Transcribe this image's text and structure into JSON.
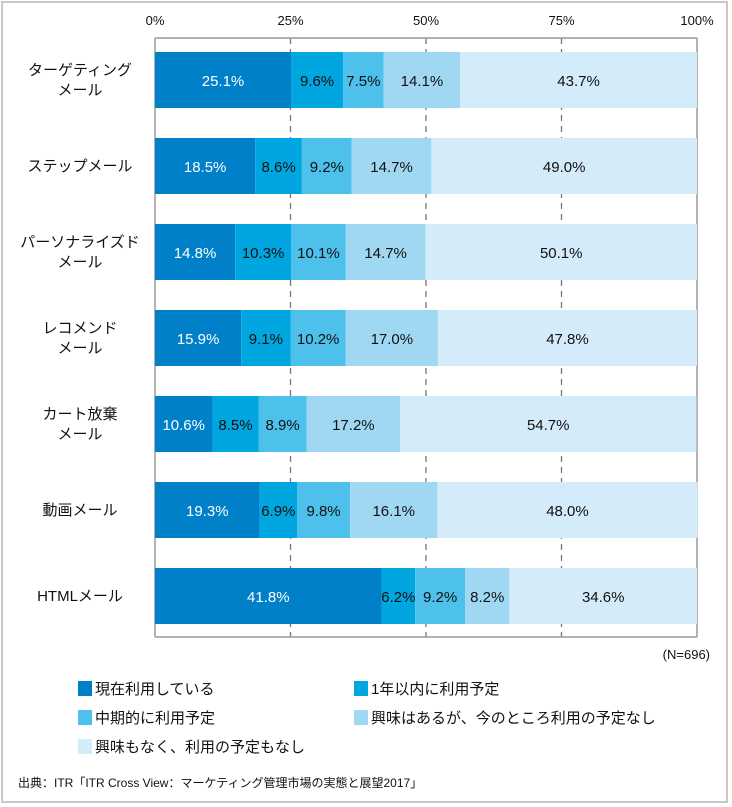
{
  "chart_data": {
    "type": "bar",
    "orientation": "horizontal",
    "stacked": true,
    "categories": [
      [
        "ターゲティング",
        "メール"
      ],
      [
        "ステップメール"
      ],
      [
        "パーソナライズド",
        "メール"
      ],
      [
        "レコメンド",
        "メール"
      ],
      [
        "カート放棄",
        "メール"
      ],
      [
        "動画メール"
      ],
      [
        "HTMLメール"
      ]
    ],
    "series": [
      {
        "name": "現在利用している",
        "color": "#0080c8",
        "label_color": "#ffffff",
        "values": [
          25.1,
          18.5,
          14.8,
          15.9,
          10.6,
          19.3,
          41.8
        ]
      },
      {
        "name": "1年以内に利用予定",
        "color": "#00a6e0",
        "label_color": "#111111",
        "values": [
          9.6,
          8.6,
          10.3,
          9.1,
          8.5,
          6.9,
          6.2
        ]
      },
      {
        "name": "中期的に利用予定",
        "color": "#4dc0ec",
        "label_color": "#111111",
        "values": [
          7.5,
          9.2,
          10.1,
          10.2,
          8.9,
          9.8,
          9.2
        ]
      },
      {
        "name": "興味はあるが、今のところ利用の予定なし",
        "color": "#a0d8f4",
        "label_color": "#111111",
        "values": [
          14.1,
          14.7,
          14.7,
          17.0,
          17.2,
          16.1,
          8.2
        ]
      },
      {
        "name": "興味もなく、利用の予定もなし",
        "color": "#d4ecf9",
        "label_color": "#111111",
        "values": [
          43.7,
          49.0,
          50.1,
          47.8,
          54.7,
          48.0,
          34.6
        ]
      }
    ],
    "xticks": [
      "0%",
      "25%",
      "50%",
      "75%",
      "100%"
    ],
    "xlim": [
      0,
      100
    ],
    "grid": "dashed vertical",
    "legend_position": "bottom",
    "note": "(N=696)",
    "source": "出典：ITR「ITR Cross View：マーケティング管理市場の実態と展望2017」"
  }
}
